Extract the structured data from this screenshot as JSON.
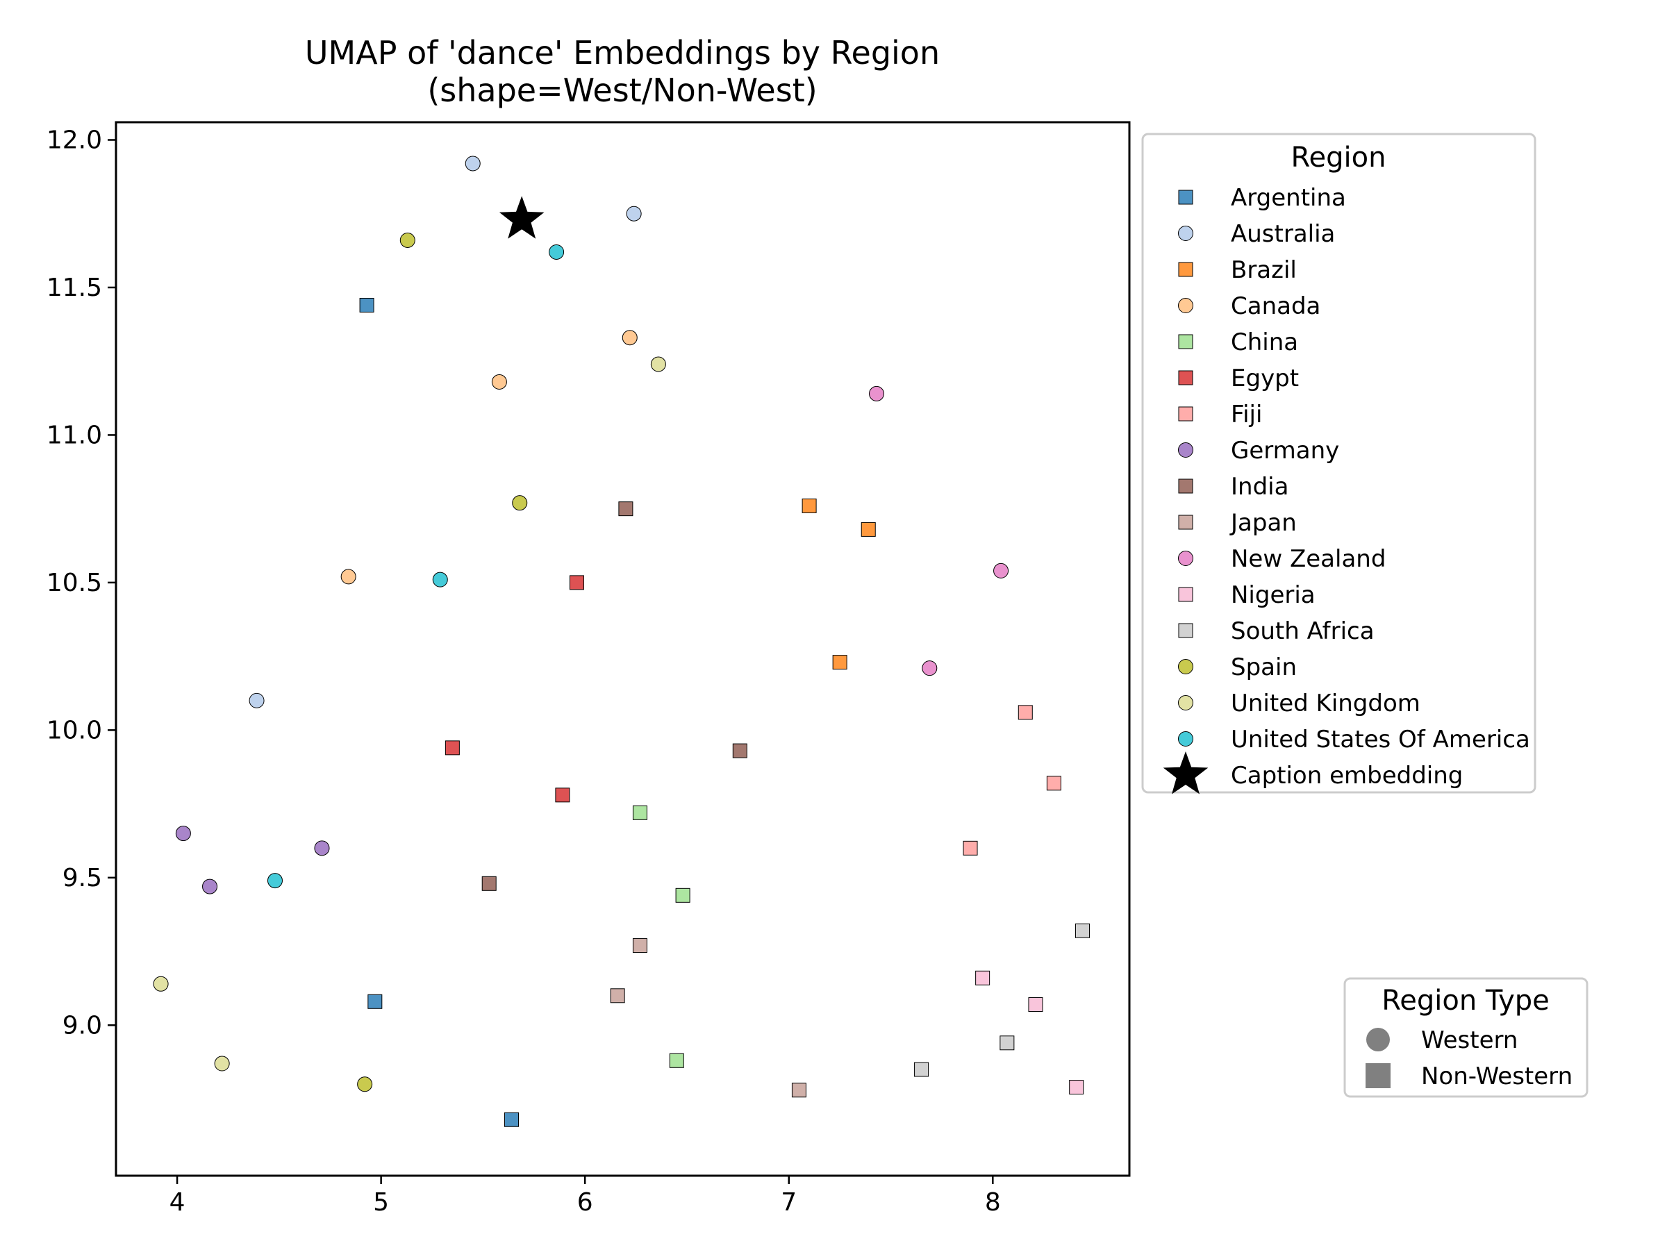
{
  "chart_data": {
    "type": "scatter",
    "title_line1": "UMAP of 'dance' Embeddings by Region",
    "title_line2": "(shape=West/Non-West)",
    "xlabel": "",
    "ylabel": "",
    "xlim": [
      3.7,
      8.67
    ],
    "ylim": [
      8.49,
      12.06
    ],
    "xticks": [
      4,
      5,
      6,
      7,
      8
    ],
    "yticks": [
      9.0,
      9.5,
      10.0,
      10.5,
      11.0,
      11.5,
      12.0
    ],
    "xtick_labels": [
      "4",
      "5",
      "6",
      "7",
      "8"
    ],
    "ytick_labels": [
      "9.0",
      "9.5",
      "10.0",
      "10.5",
      "11.0",
      "11.5",
      "12.0"
    ],
    "grid": false,
    "legend": {
      "title": "Region",
      "placement": "outside-right-top",
      "caption_label": "Caption embedding"
    },
    "type_legend": {
      "title": "Region Type",
      "placement": "outside-right-bottom",
      "western_label": "Western",
      "non_western_label": "Non-Western",
      "color": "#808080"
    },
    "series": [
      {
        "name": "Argentina",
        "marker": "square",
        "color": "#1f77b4",
        "points": [
          [
            4.93,
            11.44
          ],
          [
            4.97,
            9.08
          ],
          [
            5.64,
            8.68
          ]
        ]
      },
      {
        "name": "Australia",
        "marker": "circle",
        "color": "#aec7e8",
        "points": [
          [
            5.45,
            11.92
          ],
          [
            6.24,
            11.75
          ],
          [
            4.39,
            10.1
          ]
        ]
      },
      {
        "name": "Brazil",
        "marker": "square",
        "color": "#ff7f0e",
        "points": [
          [
            7.1,
            10.76
          ],
          [
            7.39,
            10.68
          ],
          [
            7.25,
            10.23
          ]
        ]
      },
      {
        "name": "Canada",
        "marker": "circle",
        "color": "#ffbb78",
        "points": [
          [
            6.22,
            11.33
          ],
          [
            5.58,
            11.18
          ],
          [
            4.84,
            10.52
          ]
        ]
      },
      {
        "name": "China",
        "marker": "square",
        "color": "#98df8a",
        "points": [
          [
            6.27,
            9.72
          ],
          [
            6.48,
            9.44
          ],
          [
            6.45,
            8.88
          ]
        ]
      },
      {
        "name": "Egypt",
        "marker": "square",
        "color": "#d62728",
        "points": [
          [
            5.96,
            10.5
          ],
          [
            5.35,
            9.94
          ],
          [
            5.89,
            9.78
          ]
        ]
      },
      {
        "name": "Fiji",
        "marker": "square",
        "color": "#ff9896",
        "points": [
          [
            8.16,
            10.06
          ],
          [
            8.3,
            9.82
          ],
          [
            7.89,
            9.6
          ]
        ]
      },
      {
        "name": "Germany",
        "marker": "circle",
        "color": "#9467bd",
        "points": [
          [
            4.03,
            9.65
          ],
          [
            4.71,
            9.6
          ],
          [
            4.16,
            9.47
          ]
        ]
      },
      {
        "name": "India",
        "marker": "square",
        "color": "#8c564b",
        "points": [
          [
            6.2,
            10.75
          ],
          [
            6.76,
            9.93
          ],
          [
            5.53,
            9.48
          ]
        ]
      },
      {
        "name": "Japan",
        "marker": "square",
        "color": "#c49c94",
        "points": [
          [
            6.27,
            9.27
          ],
          [
            6.16,
            9.1
          ],
          [
            7.05,
            8.78
          ]
        ]
      },
      {
        "name": "New Zealand",
        "marker": "circle",
        "color": "#e377c2",
        "points": [
          [
            7.43,
            11.14
          ],
          [
            8.04,
            10.54
          ],
          [
            7.69,
            10.21
          ]
        ]
      },
      {
        "name": "Nigeria",
        "marker": "square",
        "color": "#f7b6d2",
        "points": [
          [
            7.95,
            9.16
          ],
          [
            8.21,
            9.07
          ],
          [
            8.41,
            8.79
          ]
        ]
      },
      {
        "name": "South Africa",
        "marker": "square",
        "color": "#c7c7c7",
        "points": [
          [
            8.44,
            9.32
          ],
          [
            8.07,
            8.94
          ],
          [
            7.65,
            8.85
          ]
        ]
      },
      {
        "name": "Spain",
        "marker": "circle",
        "color": "#bcbd22",
        "points": [
          [
            5.13,
            11.66
          ],
          [
            5.68,
            10.77
          ],
          [
            4.92,
            8.8
          ]
        ]
      },
      {
        "name": "United Kingdom",
        "marker": "circle",
        "color": "#dbdb8d",
        "points": [
          [
            6.36,
            11.24
          ],
          [
            3.92,
            9.14
          ],
          [
            4.22,
            8.87
          ]
        ]
      },
      {
        "name": "United States Of America",
        "marker": "circle",
        "color": "#17becf",
        "points": [
          [
            5.86,
            11.62
          ],
          [
            5.29,
            10.51
          ],
          [
            4.48,
            9.49
          ]
        ]
      }
    ],
    "caption_point": {
      "name": "Caption embedding",
      "marker": "star",
      "color": "#000000",
      "x": 5.69,
      "y": 11.73
    }
  }
}
